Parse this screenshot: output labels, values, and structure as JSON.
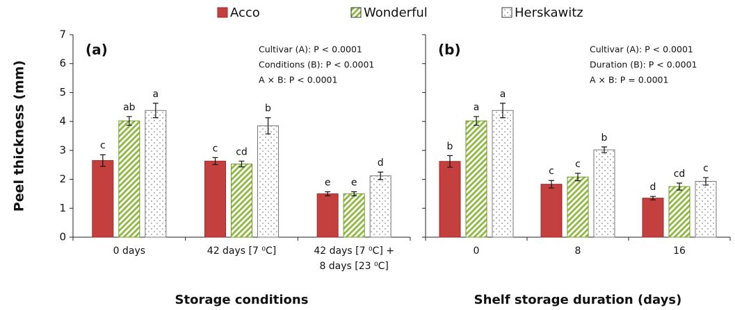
{
  "chart_data": [
    {
      "type": "bar",
      "panel_label": "(a)",
      "xlabel": "Storage conditions",
      "ylabel": "Peel thickness (mm)",
      "categories": [
        [
          "0 days"
        ],
        [
          "42 days [7 ⁰C]"
        ],
        [
          "42 days [7 ⁰C] +",
          "8 days  [23 ⁰C]"
        ]
      ],
      "annotations": [
        "Cultivar (A): P < 0.0001",
        "Conditions (B): P < 0.0001",
        "A × B: P < 0.0001"
      ],
      "ylim": [
        0,
        7
      ],
      "yticks": [
        0,
        1,
        2,
        3,
        4,
        5,
        6,
        7
      ],
      "series": [
        {
          "name": "Acco",
          "color": "#c3403f",
          "pattern": "solid",
          "values": [
            2.65,
            2.63,
            1.5
          ],
          "errors": [
            0.2,
            0.12,
            0.07
          ],
          "letters": [
            "c",
            "c",
            "e"
          ]
        },
        {
          "name": "Wonderful",
          "color": "#8cba3c",
          "pattern": "hatch",
          "values": [
            4.02,
            2.53,
            1.5
          ],
          "errors": [
            0.15,
            0.1,
            0.07
          ],
          "letters": [
            "ab",
            "cd",
            "e"
          ]
        },
        {
          "name": "Herskawitz",
          "color": "#8a8a8a",
          "pattern": "dots",
          "values": [
            4.38,
            3.85,
            2.12
          ],
          "errors": [
            0.25,
            0.28,
            0.13
          ],
          "letters": [
            "a",
            "b",
            "d"
          ]
        }
      ]
    },
    {
      "type": "bar",
      "panel_label": "(b)",
      "xlabel": "Shelf storage duration (days)",
      "categories": [
        [
          "0"
        ],
        [
          "8"
        ],
        [
          "16"
        ]
      ],
      "annotations": [
        "Cultivar (A): P < 0.0001",
        "Duration  (B): P < 0.0001",
        "A × B: P = 0.0001"
      ],
      "ylim": [
        0,
        7
      ],
      "yticks": [
        0,
        1,
        2,
        3,
        4,
        5,
        6,
        7
      ],
      "series": [
        {
          "color": "#c3403f",
          "pattern": "solid",
          "values": [
            2.62,
            1.83,
            1.35
          ],
          "errors": [
            0.2,
            0.13,
            0.06
          ],
          "letters": [
            "b",
            "c",
            "d"
          ]
        },
        {
          "color": "#8cba3c",
          "pattern": "hatch",
          "values": [
            4.02,
            2.08,
            1.75
          ],
          "errors": [
            0.15,
            0.13,
            0.12
          ],
          "letters": [
            "a",
            "c",
            "cd"
          ]
        },
        {
          "color": "#8a8a8a",
          "pattern": "dots",
          "values": [
            4.38,
            3.02,
            1.93
          ],
          "errors": [
            0.25,
            0.1,
            0.13
          ],
          "letters": [
            "a",
            "b",
            "c"
          ]
        }
      ]
    }
  ]
}
